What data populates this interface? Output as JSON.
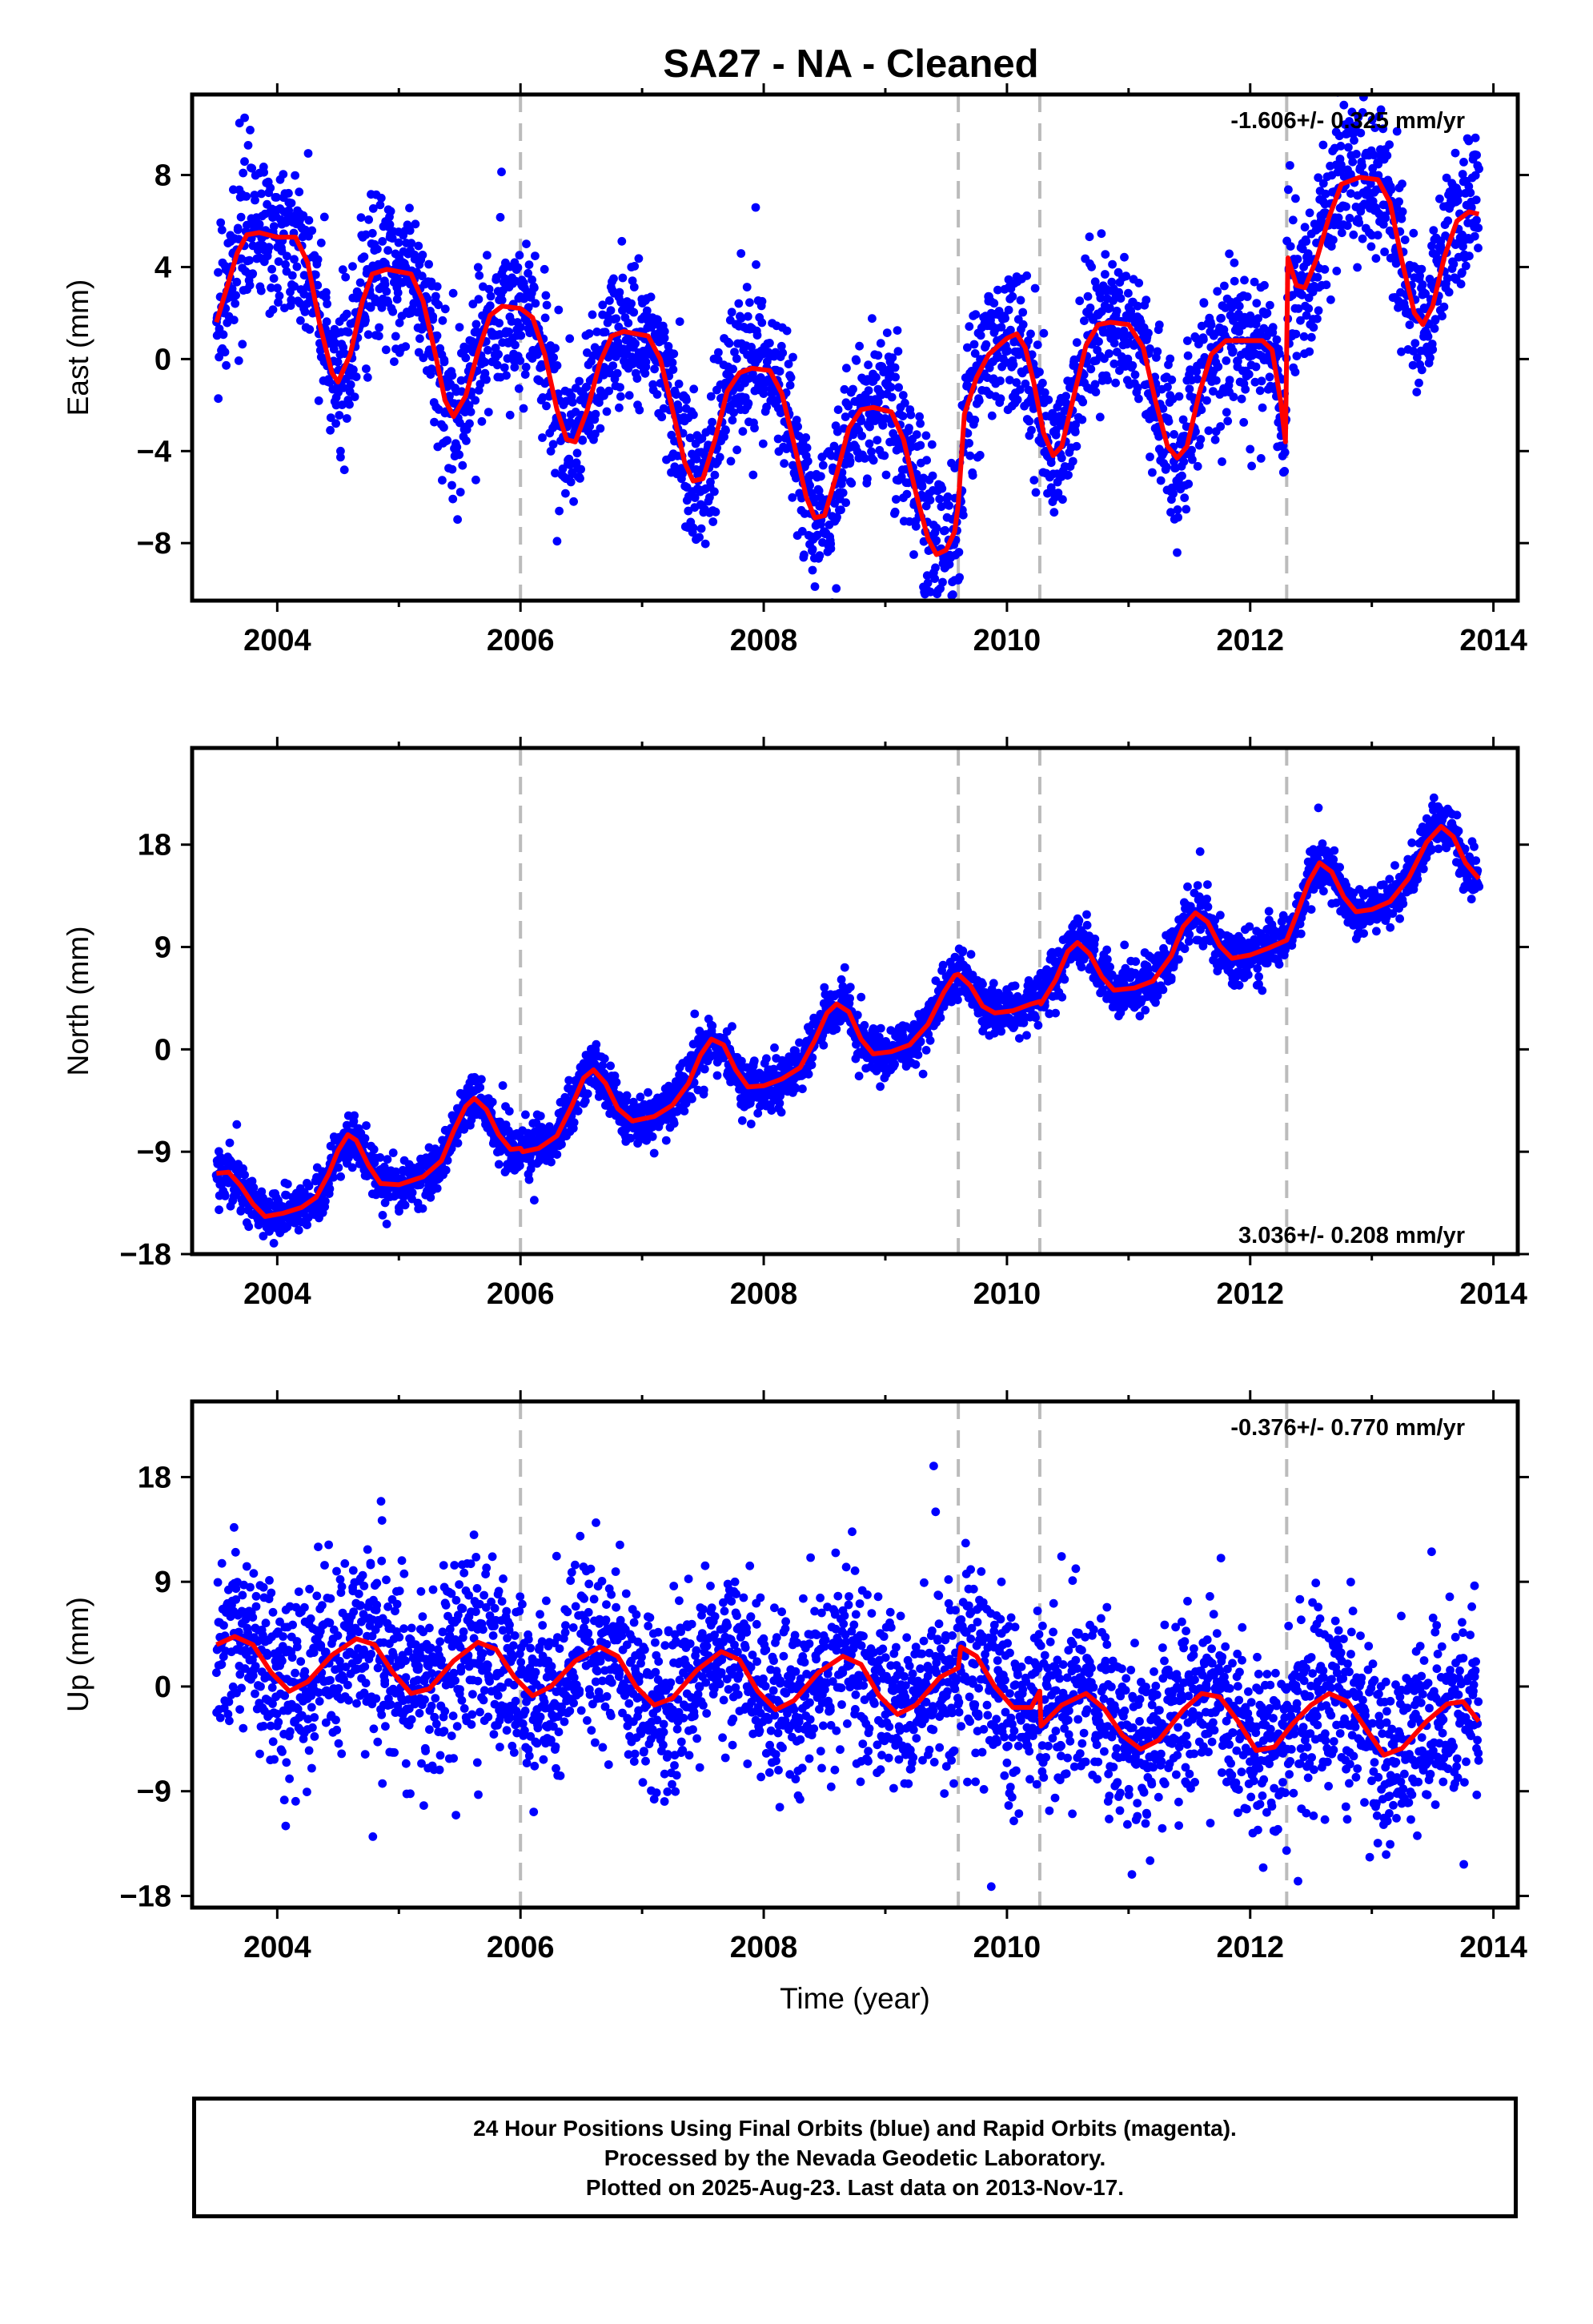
{
  "title": "SA27  - NA - Cleaned",
  "xlabel": "Time (year)",
  "colors": {
    "points": "#0000ff",
    "model": "#ff0000",
    "offset_lines": "#bbbbbb",
    "frame": "#000000"
  },
  "caption": {
    "line1": "24 Hour Positions Using Final Orbits (blue) and Rapid Orbits (magenta).",
    "line2": "Processed by the Nevada Geodetic Laboratory.",
    "line3": "Plotted on 2025-Aug-23. Last data on 2013-Nov-17."
  },
  "chart_data": [
    {
      "type": "scatter",
      "name": "east",
      "ylabel": "East (mm)",
      "rate_label": "-1.606+/- 0.325 mm/yr",
      "rate_position": "top-right",
      "xlim": [
        2003.3,
        2014.2
      ],
      "ylim": [
        -10.5,
        11.5
      ],
      "xticks": [
        2004,
        2006,
        2008,
        2010,
        2012,
        2014
      ],
      "yticks": [
        -8,
        -4,
        0,
        4,
        8
      ],
      "ytick_labels": [
        "−8",
        "−4",
        "0",
        "4",
        "8"
      ],
      "offset_lines": [
        2006.0,
        2009.6,
        2010.27,
        2012.3
      ],
      "data_range": [
        2003.5,
        2013.88
      ],
      "points_approx": 3200,
      "scatter_sd": 1.6,
      "model_curve": [
        [
          2003.5,
          1.6
        ],
        [
          2003.58,
          3.0
        ],
        [
          2003.67,
          4.6
        ],
        [
          2003.75,
          5.4
        ],
        [
          2003.85,
          5.5
        ],
        [
          2004.0,
          5.3
        ],
        [
          2004.15,
          5.3
        ],
        [
          2004.25,
          4.2
        ],
        [
          2004.35,
          1.5
        ],
        [
          2004.45,
          -0.6
        ],
        [
          2004.5,
          -1.0
        ],
        [
          2004.6,
          0.2
        ],
        [
          2004.7,
          2.5
        ],
        [
          2004.78,
          3.7
        ],
        [
          2004.9,
          3.9
        ],
        [
          2005.1,
          3.7
        ],
        [
          2005.2,
          2.5
        ],
        [
          2005.3,
          0.2
        ],
        [
          2005.38,
          -1.8
        ],
        [
          2005.45,
          -2.5
        ],
        [
          2005.55,
          -1.6
        ],
        [
          2005.65,
          0.3
        ],
        [
          2005.75,
          1.9
        ],
        [
          2005.85,
          2.3
        ],
        [
          2006.0,
          2.2
        ],
        [
          2006.1,
          1.8
        ],
        [
          2006.2,
          0.2
        ],
        [
          2006.3,
          -2.2
        ],
        [
          2006.38,
          -3.5
        ],
        [
          2006.45,
          -3.6
        ],
        [
          2006.55,
          -2.2
        ],
        [
          2006.65,
          -0.2
        ],
        [
          2006.75,
          1.0
        ],
        [
          2006.85,
          1.2
        ],
        [
          2007.05,
          1.0
        ],
        [
          2007.15,
          0.0
        ],
        [
          2007.25,
          -2.2
        ],
        [
          2007.35,
          -4.5
        ],
        [
          2007.42,
          -5.3
        ],
        [
          2007.5,
          -5.2
        ],
        [
          2007.6,
          -3.5
        ],
        [
          2007.7,
          -1.4
        ],
        [
          2007.8,
          -0.6
        ],
        [
          2007.9,
          -0.4
        ],
        [
          2008.05,
          -0.5
        ],
        [
          2008.15,
          -1.5
        ],
        [
          2008.25,
          -3.7
        ],
        [
          2008.35,
          -6.0
        ],
        [
          2008.42,
          -6.9
        ],
        [
          2008.5,
          -6.8
        ],
        [
          2008.6,
          -5.0
        ],
        [
          2008.7,
          -3.0
        ],
        [
          2008.8,
          -2.2
        ],
        [
          2008.9,
          -2.1
        ],
        [
          2009.05,
          -2.3
        ],
        [
          2009.15,
          -3.5
        ],
        [
          2009.25,
          -5.8
        ],
        [
          2009.35,
          -7.8
        ],
        [
          2009.42,
          -8.5
        ],
        [
          2009.5,
          -8.3
        ],
        [
          2009.57,
          -7.5
        ],
        [
          2009.6,
          -6.3
        ],
        [
          2009.65,
          -2.4
        ],
        [
          2009.75,
          -0.8
        ],
        [
          2009.85,
          0.2
        ],
        [
          2010.0,
          0.9
        ],
        [
          2010.08,
          1.1
        ],
        [
          2010.15,
          0.5
        ],
        [
          2010.22,
          -1.0
        ],
        [
          2010.3,
          -3.2
        ],
        [
          2010.38,
          -4.2
        ],
        [
          2010.45,
          -3.8
        ],
        [
          2010.55,
          -1.6
        ],
        [
          2010.65,
          0.6
        ],
        [
          2010.75,
          1.5
        ],
        [
          2010.85,
          1.6
        ],
        [
          2011.0,
          1.5
        ],
        [
          2011.12,
          0.5
        ],
        [
          2011.22,
          -1.8
        ],
        [
          2011.32,
          -3.8
        ],
        [
          2011.4,
          -4.3
        ],
        [
          2011.48,
          -3.8
        ],
        [
          2011.58,
          -1.5
        ],
        [
          2011.68,
          0.2
        ],
        [
          2011.8,
          0.8
        ],
        [
          2011.95,
          0.8
        ],
        [
          2012.1,
          0.8
        ],
        [
          2012.18,
          0.4
        ],
        [
          2012.25,
          -1.8
        ],
        [
          2012.29,
          -3.6
        ],
        [
          2012.31,
          4.4
        ],
        [
          2012.38,
          3.2
        ],
        [
          2012.45,
          3.1
        ],
        [
          2012.55,
          4.4
        ],
        [
          2012.65,
          6.2
        ],
        [
          2012.75,
          7.6
        ],
        [
          2012.9,
          7.9
        ],
        [
          2013.05,
          7.8
        ],
        [
          2013.15,
          6.8
        ],
        [
          2013.25,
          4.2
        ],
        [
          2013.35,
          2.0
        ],
        [
          2013.42,
          1.5
        ],
        [
          2013.5,
          2.3
        ],
        [
          2013.6,
          4.5
        ],
        [
          2013.7,
          6.0
        ],
        [
          2013.8,
          6.4
        ],
        [
          2013.88,
          6.3
        ]
      ]
    },
    {
      "type": "scatter",
      "name": "north",
      "ylabel": "North (mm)",
      "rate_label": "3.036+/- 0.208 mm/yr",
      "rate_position": "bottom-right",
      "xlim": [
        2003.3,
        2014.2
      ],
      "ylim": [
        -18,
        26.5
      ],
      "xticks": [
        2004,
        2006,
        2008,
        2010,
        2012,
        2014
      ],
      "yticks": [
        -18,
        -9,
        0,
        9,
        18
      ],
      "ytick_labels": [
        "−18",
        "−9",
        "0",
        "9",
        "18"
      ],
      "offset_lines": [
        2006.0,
        2009.6,
        2010.27,
        2012.3
      ],
      "data_range": [
        2003.5,
        2013.88
      ],
      "points_approx": 3200,
      "scatter_sd": 1.1,
      "model_curve": [
        [
          2003.5,
          -10.9
        ],
        [
          2003.6,
          -10.8
        ],
        [
          2003.7,
          -12.0
        ],
        [
          2003.8,
          -13.6
        ],
        [
          2003.9,
          -14.7
        ],
        [
          2004.05,
          -14.4
        ],
        [
          2004.2,
          -13.9
        ],
        [
          2004.32,
          -13.0
        ],
        [
          2004.42,
          -11.0
        ],
        [
          2004.5,
          -8.9
        ],
        [
          2004.58,
          -7.5
        ],
        [
          2004.65,
          -8.0
        ],
        [
          2004.75,
          -10.2
        ],
        [
          2004.85,
          -11.8
        ],
        [
          2005.0,
          -11.9
        ],
        [
          2005.2,
          -11.2
        ],
        [
          2005.35,
          -9.8
        ],
        [
          2005.45,
          -7.2
        ],
        [
          2005.55,
          -5.0
        ],
        [
          2005.62,
          -4.3
        ],
        [
          2005.72,
          -5.3
        ],
        [
          2005.82,
          -7.5
        ],
        [
          2005.92,
          -8.8
        ],
        [
          2006.0,
          -8.7
        ],
        [
          2006.02,
          -9.0
        ],
        [
          2006.15,
          -8.7
        ],
        [
          2006.3,
          -7.6
        ],
        [
          2006.42,
          -5.0
        ],
        [
          2006.52,
          -2.5
        ],
        [
          2006.6,
          -1.8
        ],
        [
          2006.7,
          -3.0
        ],
        [
          2006.8,
          -5.2
        ],
        [
          2006.92,
          -6.3
        ],
        [
          2007.1,
          -5.9
        ],
        [
          2007.25,
          -4.9
        ],
        [
          2007.38,
          -3.0
        ],
        [
          2007.48,
          -0.5
        ],
        [
          2007.57,
          0.9
        ],
        [
          2007.67,
          0.4
        ],
        [
          2007.77,
          -1.8
        ],
        [
          2007.87,
          -3.3
        ],
        [
          2008.0,
          -3.2
        ],
        [
          2008.15,
          -2.6
        ],
        [
          2008.3,
          -1.6
        ],
        [
          2008.42,
          0.8
        ],
        [
          2008.52,
          3.2
        ],
        [
          2008.6,
          4.0
        ],
        [
          2008.7,
          3.3
        ],
        [
          2008.8,
          0.9
        ],
        [
          2008.9,
          -0.4
        ],
        [
          2009.05,
          -0.2
        ],
        [
          2009.2,
          0.4
        ],
        [
          2009.35,
          2.2
        ],
        [
          2009.48,
          5.0
        ],
        [
          2009.57,
          6.5
        ],
        [
          2009.6,
          6.6
        ],
        [
          2009.7,
          5.6
        ],
        [
          2009.8,
          3.8
        ],
        [
          2009.9,
          3.2
        ],
        [
          2010.05,
          3.4
        ],
        [
          2010.2,
          4.0
        ],
        [
          2010.27,
          4.2
        ],
        [
          2010.28,
          4.0
        ],
        [
          2010.4,
          6.1
        ],
        [
          2010.5,
          8.6
        ],
        [
          2010.58,
          9.4
        ],
        [
          2010.68,
          8.4
        ],
        [
          2010.78,
          6.4
        ],
        [
          2010.88,
          5.2
        ],
        [
          2011.05,
          5.4
        ],
        [
          2011.2,
          6.0
        ],
        [
          2011.35,
          8.2
        ],
        [
          2011.45,
          10.8
        ],
        [
          2011.55,
          12.0
        ],
        [
          2011.65,
          11.2
        ],
        [
          2011.75,
          9.1
        ],
        [
          2011.85,
          8.0
        ],
        [
          2012.0,
          8.3
        ],
        [
          2012.15,
          8.9
        ],
        [
          2012.3,
          9.6
        ],
        [
          2012.38,
          11.8
        ],
        [
          2012.48,
          14.7
        ],
        [
          2012.57,
          16.4
        ],
        [
          2012.67,
          15.6
        ],
        [
          2012.77,
          13.4
        ],
        [
          2012.87,
          12.1
        ],
        [
          2013.0,
          12.3
        ],
        [
          2013.15,
          13.0
        ],
        [
          2013.3,
          15.0
        ],
        [
          2013.45,
          18.2
        ],
        [
          2013.57,
          19.6
        ],
        [
          2013.67,
          18.7
        ],
        [
          2013.77,
          16.4
        ],
        [
          2013.88,
          15.0
        ]
      ]
    },
    {
      "type": "scatter",
      "name": "up",
      "ylabel": "Up (mm)",
      "rate_label": "-0.376+/- 0.770 mm/yr",
      "rate_position": "top-right",
      "xlim": [
        2003.3,
        2014.2
      ],
      "ylim": [
        -19,
        24.5
      ],
      "xticks": [
        2004,
        2006,
        2008,
        2010,
        2012,
        2014
      ],
      "yticks": [
        -18,
        -9,
        0,
        9,
        18
      ],
      "ytick_labels": [
        "−18",
        "−9",
        "0",
        "9",
        "18"
      ],
      "offset_lines": [
        2006.0,
        2009.6,
        2010.27,
        2012.3
      ],
      "data_range": [
        2003.5,
        2013.88
      ],
      "points_approx": 3200,
      "scatter_sd": 3.9,
      "model_curve": [
        [
          2003.5,
          3.6
        ],
        [
          2003.65,
          4.3
        ],
        [
          2003.8,
          3.6
        ],
        [
          2003.95,
          1.2
        ],
        [
          2004.1,
          -0.4
        ],
        [
          2004.25,
          0.4
        ],
        [
          2004.45,
          2.7
        ],
        [
          2004.65,
          4.1
        ],
        [
          2004.8,
          3.6
        ],
        [
          2004.95,
          1.2
        ],
        [
          2005.1,
          -0.6
        ],
        [
          2005.25,
          -0.2
        ],
        [
          2005.45,
          2.2
        ],
        [
          2005.65,
          3.8
        ],
        [
          2005.8,
          3.2
        ],
        [
          2005.95,
          0.8
        ],
        [
          2006.1,
          -0.8
        ],
        [
          2006.25,
          0.0
        ],
        [
          2006.45,
          2.2
        ],
        [
          2006.65,
          3.4
        ],
        [
          2006.8,
          2.6
        ],
        [
          2006.95,
          0.0
        ],
        [
          2007.1,
          -1.6
        ],
        [
          2007.25,
          -1.0
        ],
        [
          2007.45,
          1.4
        ],
        [
          2007.65,
          3.0
        ],
        [
          2007.8,
          2.3
        ],
        [
          2007.95,
          -0.4
        ],
        [
          2008.1,
          -2.0
        ],
        [
          2008.25,
          -1.2
        ],
        [
          2008.45,
          1.2
        ],
        [
          2008.65,
          2.6
        ],
        [
          2008.8,
          1.9
        ],
        [
          2008.95,
          -0.8
        ],
        [
          2009.1,
          -2.4
        ],
        [
          2009.25,
          -1.6
        ],
        [
          2009.45,
          0.8
        ],
        [
          2009.6,
          1.6
        ],
        [
          2009.62,
          3.4
        ],
        [
          2009.75,
          2.6
        ],
        [
          2009.9,
          0.0
        ],
        [
          2010.05,
          -1.8
        ],
        [
          2010.2,
          -1.8
        ],
        [
          2010.27,
          -0.4
        ],
        [
          2010.28,
          -3.4
        ],
        [
          2010.45,
          -1.6
        ],
        [
          2010.65,
          -0.6
        ],
        [
          2010.8,
          -1.9
        ],
        [
          2010.95,
          -4.2
        ],
        [
          2011.1,
          -5.4
        ],
        [
          2011.25,
          -4.6
        ],
        [
          2011.45,
          -2.0
        ],
        [
          2011.6,
          -0.6
        ],
        [
          2011.75,
          -0.9
        ],
        [
          2011.9,
          -3.0
        ],
        [
          2012.05,
          -5.5
        ],
        [
          2012.2,
          -5.2
        ],
        [
          2012.35,
          -3.2
        ],
        [
          2012.5,
          -1.6
        ],
        [
          2012.65,
          -0.6
        ],
        [
          2012.8,
          -1.3
        ],
        [
          2012.95,
          -3.6
        ],
        [
          2013.1,
          -5.9
        ],
        [
          2013.25,
          -5.3
        ],
        [
          2013.45,
          -3.0
        ],
        [
          2013.62,
          -1.5
        ],
        [
          2013.75,
          -1.3
        ],
        [
          2013.88,
          -3.0
        ]
      ]
    }
  ]
}
